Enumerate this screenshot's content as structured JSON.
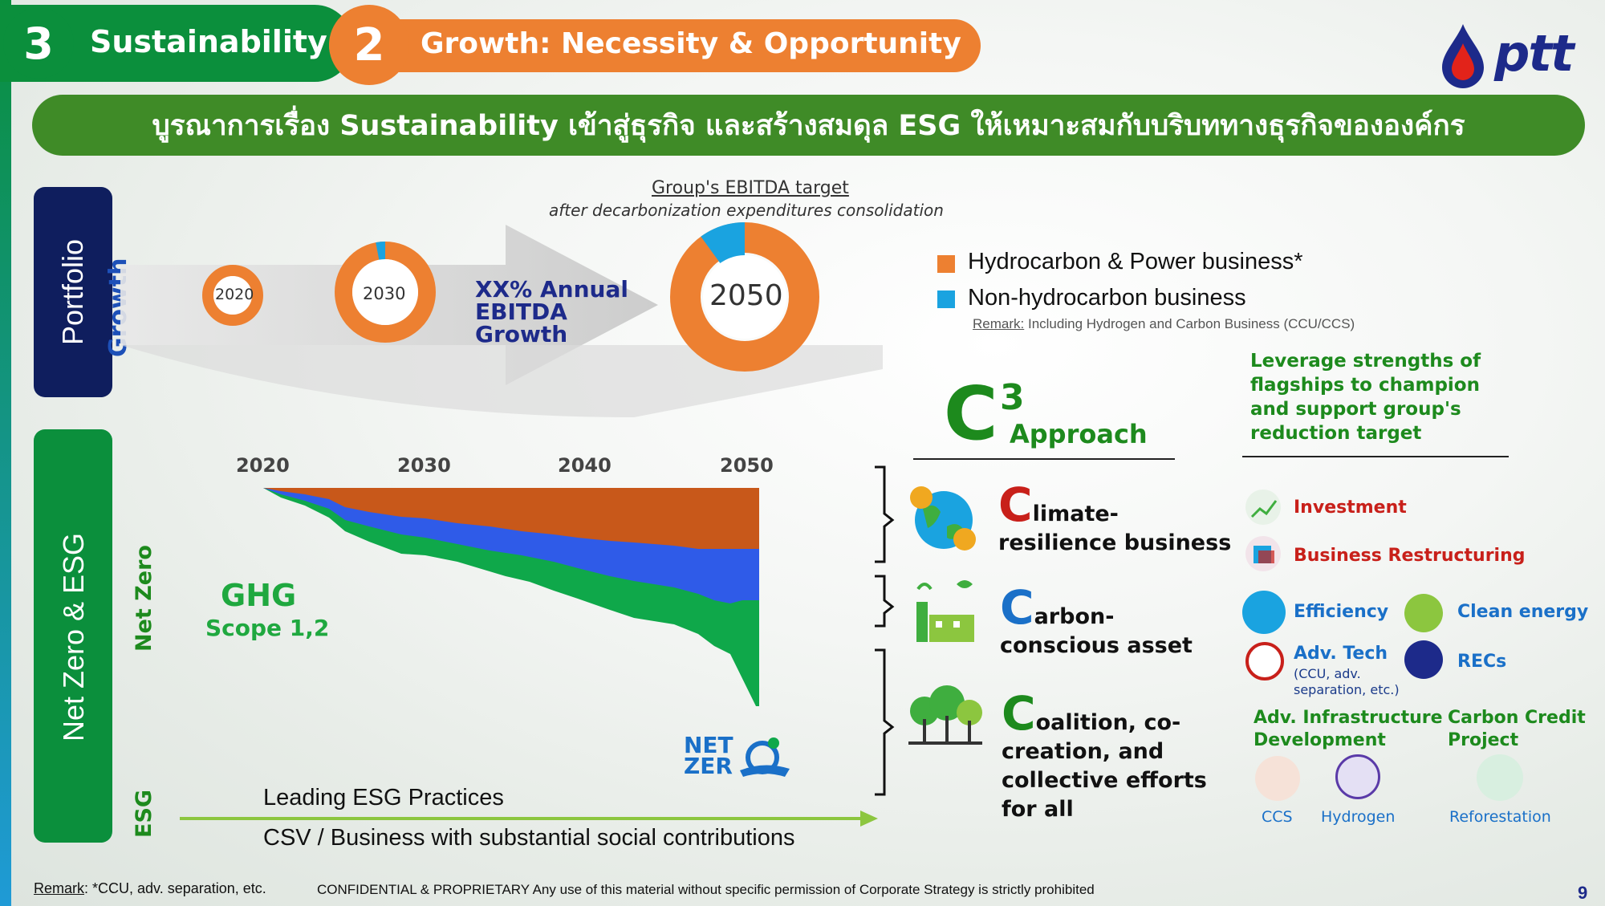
{
  "header": {
    "tab_left_number": "3",
    "tab_left_label": "Sustainability",
    "tab_right_number": "2",
    "tab_right_label": "Growth: Necessity & Opportunity",
    "logo_text": "ptt"
  },
  "banner": "บูรณาการเรื่อง Sustainability เข้าสู่ธุรกิจ และสร้างสมดุล ESG ให้เหมาะสมกับบริบททางธุรกิจขององค์กร",
  "side_labels": {
    "portfolio": "Portfolio",
    "growth": "Growth",
    "net_zero_esg": "Net Zero & ESG",
    "net_zero": "Net Zero",
    "esg": "ESG"
  },
  "ebitda": {
    "title": "Group's EBITDA target",
    "subtitle": "after decarbonization expenditures consolidation",
    "growth_text": [
      "XX% Annual",
      "EBITDA",
      "Growth"
    ],
    "donuts": [
      {
        "label": "2020",
        "non_hydrocarbon_share": 0.0
      },
      {
        "label": "2030",
        "non_hydrocarbon_share": 0.03
      },
      {
        "label": "2050",
        "non_hydrocarbon_share": 0.1
      }
    ],
    "legend": [
      {
        "label": "Hydrocarbon & Power business*",
        "color": "#ed8031"
      },
      {
        "label": "Non-hydrocarbon business",
        "color": "#1aa3e0"
      }
    ],
    "remark_label": "Remark:",
    "remark_text": "Including Hydrogen and Carbon Business (CCU/CCS)"
  },
  "ghg": {
    "title": "GHG",
    "subtitle": "Scope 1,2",
    "years": [
      "2020",
      "2030",
      "2040",
      "2050"
    ],
    "netzero_logo_top": "NET",
    "netzero_logo_bottom": "ZER",
    "colors": {
      "top": "#c8581a",
      "mid": "#2f5be8",
      "bottom": "#0fa84a"
    }
  },
  "esg": {
    "line1": "Leading ESG Practices",
    "line2": "CSV / Business with substantial social contributions"
  },
  "c3": {
    "letter": "C",
    "sup": "3",
    "approach": "Approach",
    "items": [
      {
        "cap": "C",
        "rest": "limate-",
        "line2": "resilience business",
        "color": "#c8201a"
      },
      {
        "cap": "C",
        "rest": "arbon-",
        "line2": "conscious asset",
        "color": "#1a70c8"
      },
      {
        "cap": "C",
        "rest": "oalition, co-",
        "line2": "creation, and",
        "line3": "collective efforts",
        "line4": "for all",
        "color": "#1d8a1d"
      }
    ]
  },
  "levers": {
    "heading": "Leverage strengths of flagships to champion and support group's reduction target",
    "investment": "Investment",
    "restructuring": "Business Restructuring",
    "efficiency": "Efficiency",
    "clean_energy": "Clean energy",
    "adv_tech": "Adv. Tech",
    "adv_tech_sub1": "(CCU, adv.",
    "adv_tech_sub2": "separation, etc.)",
    "recs": "RECs",
    "infra1": "Adv. Infrastructure",
    "infra2": "Development",
    "credit1": "Carbon Credit",
    "credit2": "Project",
    "ccs": "CCS",
    "hydrogen": "Hydrogen",
    "reforestation": "Reforestation"
  },
  "footer": {
    "remark_label": "Remark",
    "remark_text": ": *CCU, adv. separation, etc.",
    "confidential": "CONFIDENTIAL & PROPRIETARY Any use of this material without specific permission of Corporate Strategy is strictly prohibited",
    "page": "9"
  }
}
